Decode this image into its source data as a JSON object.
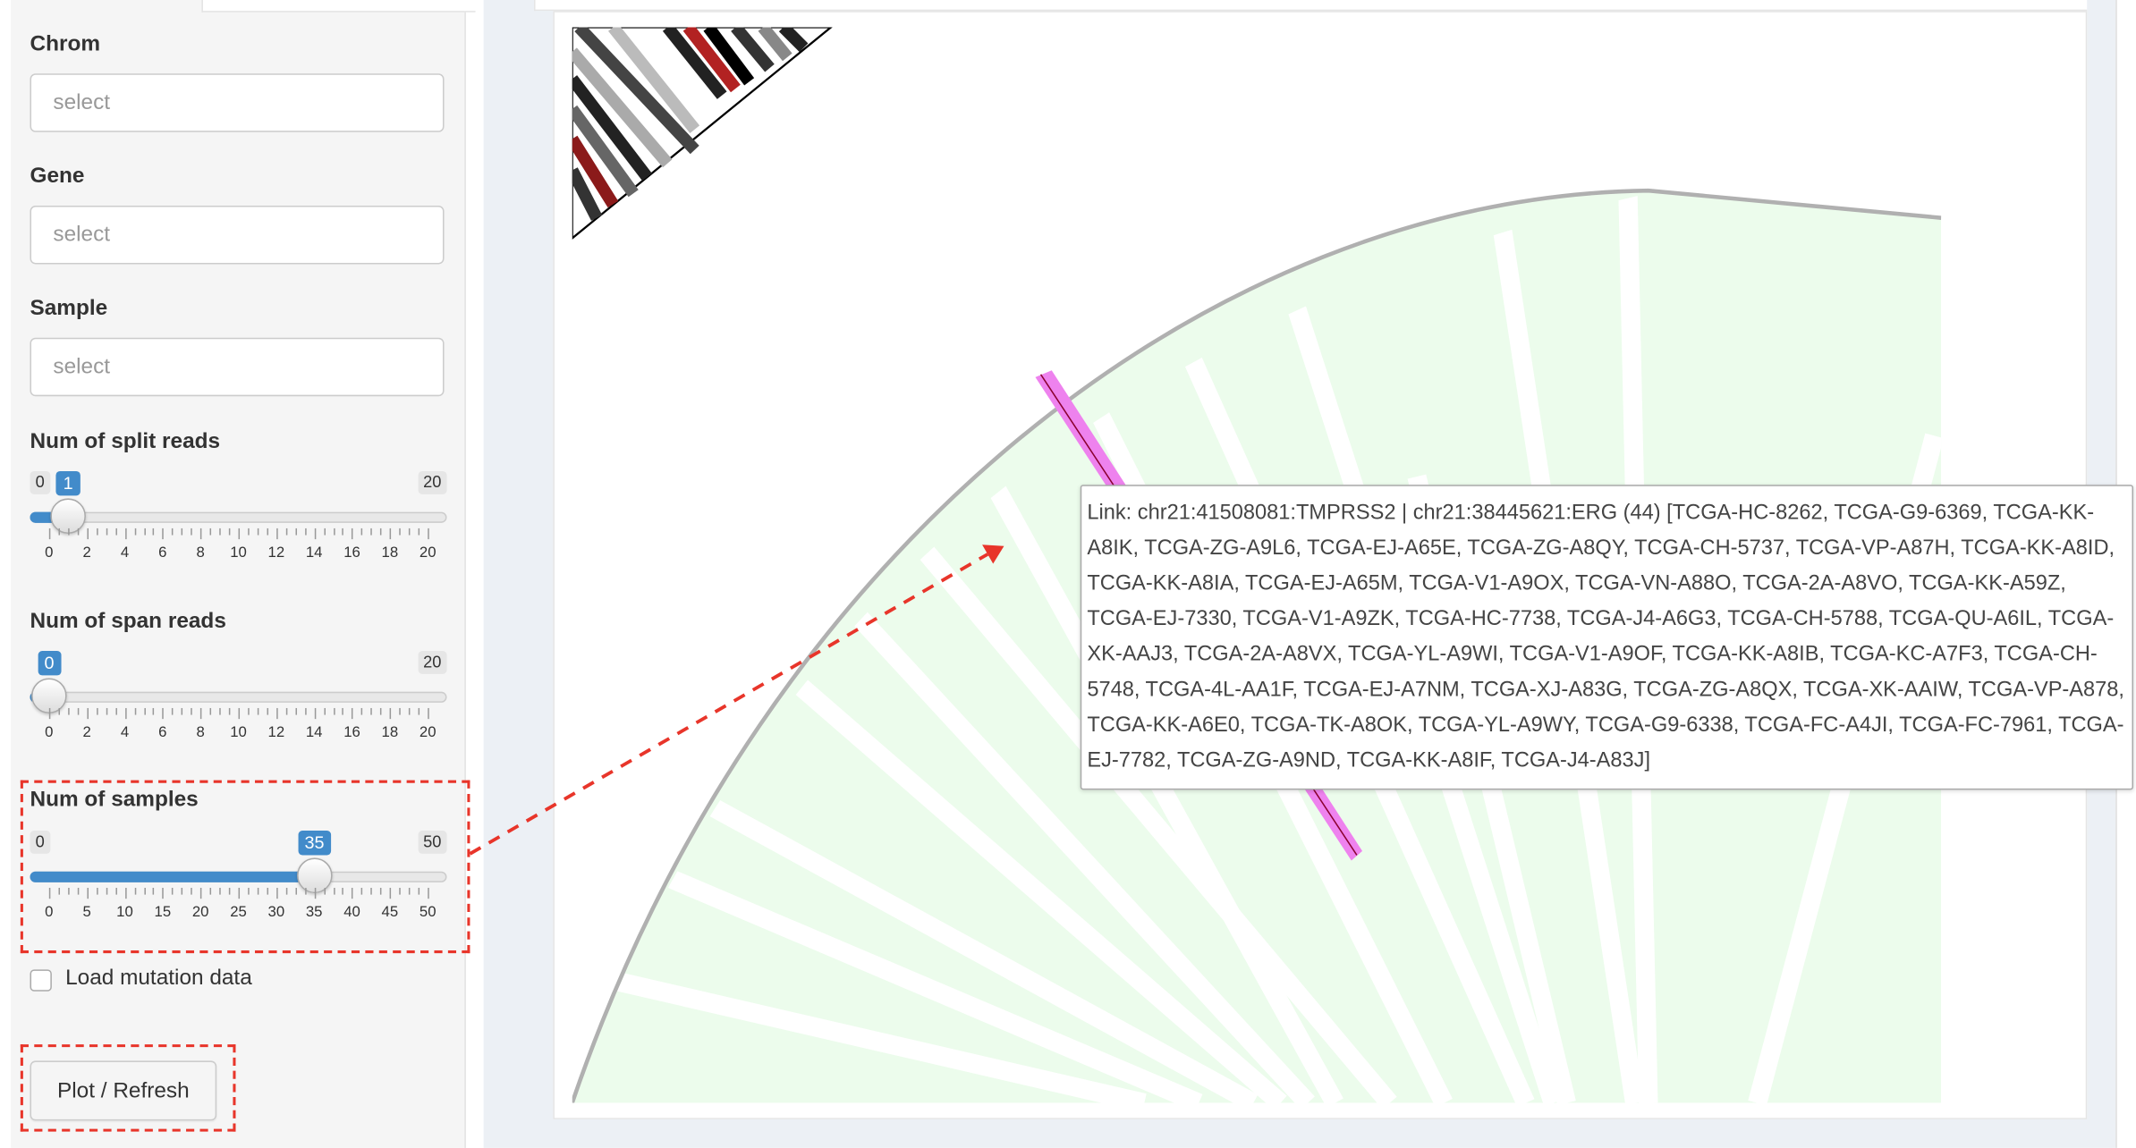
{
  "sidebar": {
    "chrom": {
      "label": "Chrom",
      "placeholder": "select"
    },
    "gene": {
      "label": "Gene",
      "placeholder": "select"
    },
    "sample": {
      "label": "Sample",
      "placeholder": "select"
    },
    "split_reads": {
      "label": "Num of split reads",
      "min": "0",
      "max": "20",
      "value": "1",
      "fraction": 0.05,
      "ticks": [
        "0",
        "2",
        "4",
        "6",
        "8",
        "10",
        "12",
        "14",
        "16",
        "18",
        "20"
      ]
    },
    "span_reads": {
      "label": "Num of span reads",
      "min": "0",
      "max": "20",
      "value": "0",
      "fraction": 0.0,
      "ticks": [
        "0",
        "2",
        "4",
        "6",
        "8",
        "10",
        "12",
        "14",
        "16",
        "18",
        "20"
      ]
    },
    "num_samples": {
      "label": "Num of samples",
      "min": "0",
      "max": "50",
      "value": "35",
      "fraction": 0.7,
      "ticks": [
        "0",
        "5",
        "10",
        "15",
        "20",
        "25",
        "30",
        "35",
        "40",
        "45",
        "50"
      ]
    },
    "load_mutation": {
      "label": "Load mutation data",
      "checked": false
    },
    "plot_button": "Plot / Refresh"
  },
  "plot": {
    "tooltip": "Link: chr21:41508081:TMPRSS2 | chr21:38445621:ERG (44) [TCGA-HC-8262, TCGA-G9-6369, TCGA-KK-A8IK, TCGA-ZG-A9L6, TCGA-EJ-A65E, TCGA-ZG-A8QY, TCGA-CH-5737, TCGA-VP-A87H, TCGA-KK-A8ID, TCGA-KK-A8IA, TCGA-EJ-A65M, TCGA-V1-A9OX, TCGA-VN-A88O, TCGA-2A-A8VO, TCGA-KK-A59Z, TCGA-EJ-7330, TCGA-V1-A9ZK, TCGA-HC-7738, TCGA-J4-A6G3, TCGA-CH-5788, TCGA-QU-A6IL, TCGA-XK-AAJ3, TCGA-2A-A8VX, TCGA-YL-A9WI, TCGA-V1-A9OF, TCGA-KK-A8IB, TCGA-KC-A7F3, TCGA-CH-5748, TCGA-4L-AA1F, TCGA-EJ-A7NM, TCGA-XJ-A83G, TCGA-ZG-A8QX, TCGA-XK-AAIW, TCGA-VP-A878, TCGA-KK-A6E0, TCGA-TK-A8OK, TCGA-YL-A9WY, TCGA-G9-6338, TCGA-FC-A4JI, TCGA-FC-7961, TCGA-EJ-7782, TCGA-ZG-A9ND, TCGA-KK-A8IF, TCGA-J4-A83J]"
  },
  "colors": {
    "accent": "#428bca",
    "highlight": "#e8352a",
    "link": "#ee82ee",
    "sector": "#ecfcec"
  }
}
